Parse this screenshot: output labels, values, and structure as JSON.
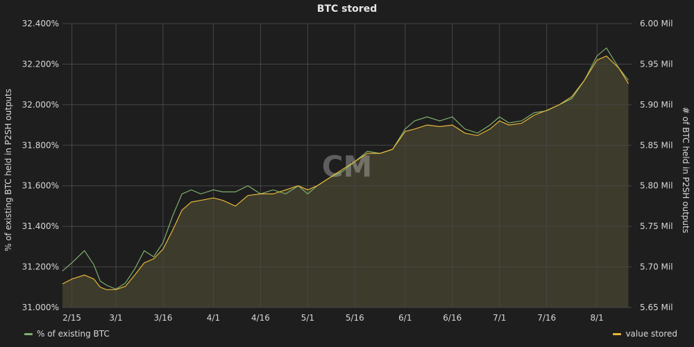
{
  "chart_data": {
    "type": "area",
    "title": "BTC stored",
    "ylabel_left": "% of existing BTC held in P2SH outputs",
    "ylabel_right": "# of BTC held in P2SH outputs",
    "x_ticks": [
      "2/15",
      "3/1",
      "3/16",
      "4/1",
      "4/16",
      "5/1",
      "5/16",
      "6/1",
      "6/16",
      "7/1",
      "7/16",
      "8/1"
    ],
    "y_left_ticks": [
      "31.000%",
      "31.200%",
      "31.400%",
      "31.600%",
      "31.800%",
      "32.000%",
      "32.200%",
      "32.400%"
    ],
    "y_right_ticks": [
      "5.65 Mil",
      "5.70 Mil",
      "5.75 Mil",
      "5.80 Mil",
      "5.85 Mil",
      "5.90 Mil",
      "5.95 Mil",
      "6.00 Mil"
    ],
    "y_left_range": [
      31.0,
      32.4
    ],
    "y_right_range": [
      5.65,
      6.0
    ],
    "x_range": [
      "2/12",
      "8/12"
    ],
    "grid": true,
    "legend_placement": "bottom",
    "watermark": "CM",
    "colors": {
      "background": "#1f1e1f",
      "grid": "#474747",
      "pct_line": "#7eb26d",
      "value_line": "#eab839",
      "fill": "#3d3b2b"
    },
    "series": [
      {
        "name": "% of existing BTC",
        "axis": "left",
        "x": [
          "2/12",
          "2/15",
          "2/19",
          "2/22",
          "2/24",
          "2/26",
          "3/1",
          "3/4",
          "3/7",
          "3/10",
          "3/13",
          "3/16",
          "3/19",
          "3/22",
          "3/25",
          "3/28",
          "4/1",
          "4/4",
          "4/8",
          "4/12",
          "4/16",
          "4/20",
          "4/24",
          "4/28",
          "5/1",
          "5/4",
          "5/8",
          "5/12",
          "5/16",
          "5/20",
          "5/24",
          "5/28",
          "6/1",
          "6/4",
          "6/8",
          "6/12",
          "6/16",
          "6/20",
          "6/24",
          "6/28",
          "7/1",
          "7/4",
          "7/8",
          "7/12",
          "7/16",
          "7/20",
          "7/24",
          "7/28",
          "8/1",
          "8/4",
          "8/8",
          "8/11"
        ],
        "values": [
          31.18,
          31.22,
          31.28,
          31.21,
          31.13,
          31.11,
          31.09,
          31.12,
          31.19,
          31.28,
          31.25,
          31.32,
          31.45,
          31.56,
          31.58,
          31.56,
          31.58,
          31.57,
          31.57,
          31.6,
          31.56,
          31.58,
          31.56,
          31.6,
          31.56,
          31.6,
          31.64,
          31.67,
          31.72,
          31.77,
          31.76,
          31.78,
          31.88,
          31.92,
          31.94,
          31.92,
          31.94,
          31.88,
          31.86,
          31.9,
          31.94,
          31.91,
          31.92,
          31.96,
          31.97,
          32.0,
          32.03,
          32.12,
          32.24,
          32.28,
          32.18,
          32.12
        ]
      },
      {
        "name": "value stored",
        "axis": "right",
        "x": [
          "2/12",
          "2/15",
          "2/19",
          "2/22",
          "2/24",
          "2/26",
          "3/1",
          "3/4",
          "3/7",
          "3/10",
          "3/13",
          "3/16",
          "3/19",
          "3/22",
          "3/25",
          "3/28",
          "4/1",
          "4/4",
          "4/8",
          "4/12",
          "4/16",
          "4/20",
          "4/24",
          "4/28",
          "5/1",
          "5/4",
          "5/8",
          "5/12",
          "5/16",
          "5/20",
          "5/24",
          "5/28",
          "6/1",
          "6/4",
          "6/8",
          "6/12",
          "6/16",
          "6/20",
          "6/24",
          "6/28",
          "7/1",
          "7/4",
          "7/8",
          "7/12",
          "7/16",
          "7/20",
          "7/24",
          "7/28",
          "8/1",
          "8/4",
          "8/8",
          "8/11"
        ],
        "values": [
          5.679,
          5.685,
          5.69,
          5.685,
          5.675,
          5.672,
          5.672,
          5.676,
          5.69,
          5.705,
          5.71,
          5.722,
          5.745,
          5.77,
          5.78,
          5.782,
          5.785,
          5.782,
          5.775,
          5.788,
          5.79,
          5.79,
          5.795,
          5.8,
          5.795,
          5.8,
          5.81,
          5.82,
          5.83,
          5.84,
          5.84,
          5.845,
          5.867,
          5.87,
          5.875,
          5.873,
          5.875,
          5.865,
          5.862,
          5.87,
          5.88,
          5.875,
          5.877,
          5.887,
          5.893,
          5.9,
          5.91,
          5.93,
          5.955,
          5.96,
          5.945,
          5.926
        ]
      }
    ]
  }
}
